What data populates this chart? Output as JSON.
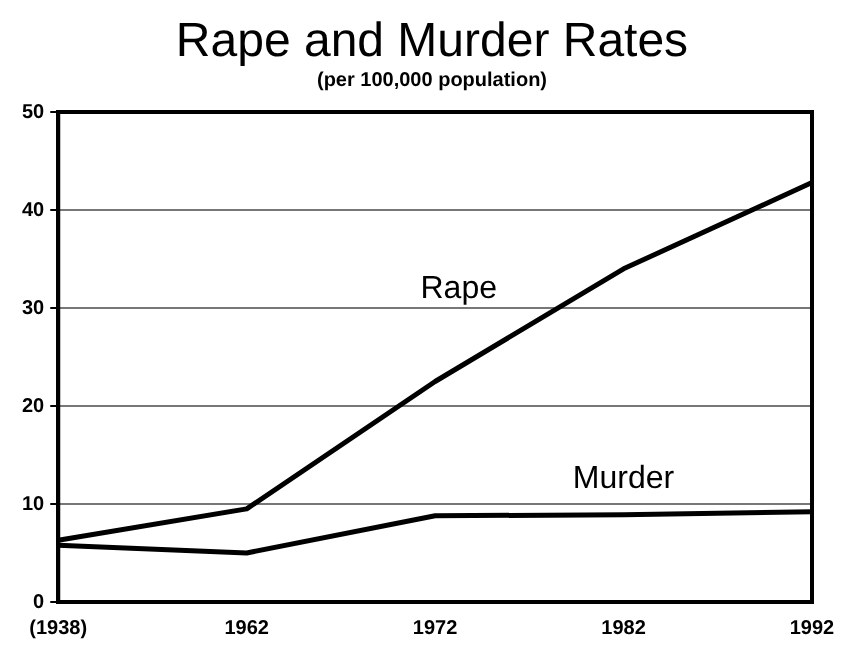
{
  "chart_data": {
    "type": "line",
    "title": "Rape and Murder Rates",
    "subtitle": "(per 100,000 population)",
    "categories": [
      "(1938)",
      "1962",
      "1972",
      "1982",
      "1992"
    ],
    "series": [
      {
        "name": "Rape",
        "color": "#000000",
        "values": [
          6.3,
          9.5,
          22.5,
          34,
          42.8
        ]
      },
      {
        "name": "Murder",
        "color": "#000000",
        "values": [
          5.8,
          5,
          8.8,
          8.9,
          9.2
        ]
      }
    ],
    "ylim": [
      0,
      50
    ],
    "yticks": [
      0,
      10,
      20,
      30,
      40,
      50
    ],
    "grid": "y",
    "legend": false,
    "marker": "none",
    "line_style": "solid"
  }
}
